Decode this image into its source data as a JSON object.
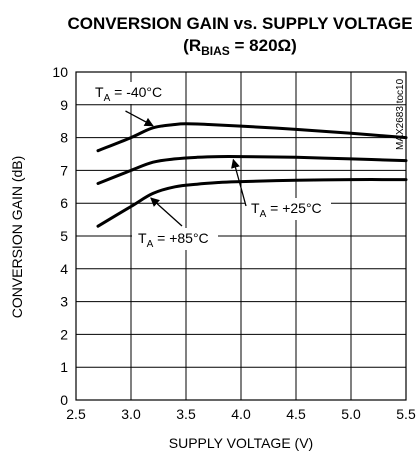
{
  "chart_data": {
    "type": "line",
    "title": "CONVERSION GAIN vs. SUPPLY VOLTAGE",
    "subtitle_prefix": "(R",
    "subtitle_sub": "BIAS",
    "subtitle_suffix": " = 820Ω)",
    "xlabel": "SUPPLY VOLTAGE (V)",
    "ylabel": "CONVERSION GAIN (dB)",
    "xlim": [
      2.5,
      5.5
    ],
    "ylim": [
      0,
      10
    ],
    "x_ticks": [
      "2.5",
      "3.0",
      "3.5",
      "4.0",
      "4.5",
      "5.0",
      "5.5"
    ],
    "y_ticks": [
      "0",
      "1",
      "2",
      "3",
      "4",
      "5",
      "6",
      "7",
      "8",
      "9",
      "10"
    ],
    "grid": true,
    "watermark": "MAX2683 toc10",
    "series": [
      {
        "name": "T_A = -40°C",
        "label_main": "T",
        "label_sub": "A",
        "label_rest": " = -40°C",
        "x": [
          2.7,
          3.0,
          3.2,
          3.4,
          3.5,
          3.7,
          4.0,
          4.5,
          5.0,
          5.5
        ],
        "y": [
          7.6,
          8.0,
          8.3,
          8.4,
          8.42,
          8.4,
          8.35,
          8.25,
          8.13,
          8.0
        ]
      },
      {
        "name": "T_A = +25°C",
        "label_main": "T",
        "label_sub": "A",
        "label_rest": " = +25°C",
        "x": [
          2.7,
          3.0,
          3.2,
          3.4,
          3.6,
          3.8,
          4.0,
          4.5,
          5.0,
          5.5
        ],
        "y": [
          6.6,
          7.0,
          7.25,
          7.35,
          7.4,
          7.42,
          7.42,
          7.4,
          7.35,
          7.3
        ]
      },
      {
        "name": "T_A = +85°C",
        "label_main": "T",
        "label_sub": "A",
        "label_rest": " = +85°C",
        "x": [
          2.7,
          3.0,
          3.2,
          3.4,
          3.6,
          3.8,
          4.0,
          4.5,
          5.0,
          5.5
        ],
        "y": [
          5.3,
          5.9,
          6.3,
          6.5,
          6.58,
          6.63,
          6.66,
          6.7,
          6.72,
          6.72
        ]
      }
    ]
  }
}
